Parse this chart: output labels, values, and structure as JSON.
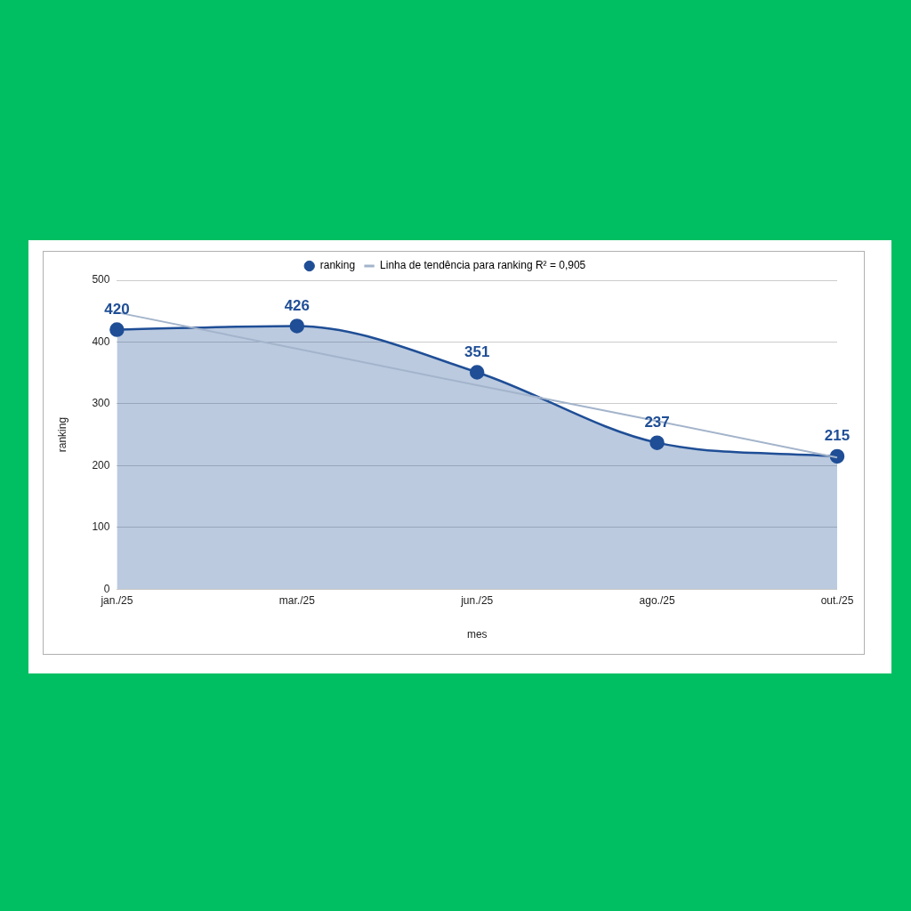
{
  "chart_data": {
    "type": "area",
    "xlabel": "mes",
    "ylabel": "ranking",
    "categories": [
      "jan./25",
      "mar./25",
      "jun./25",
      "ago./25",
      "out./25"
    ],
    "series": [
      {
        "name": "ranking",
        "type": "area",
        "color": "#1f4e96",
        "marker": "circle",
        "values": [
          420,
          426,
          351,
          237,
          215
        ],
        "value_labels": [
          "420",
          "426",
          "351",
          "237",
          "215"
        ]
      },
      {
        "name": "Linha de tendência para ranking R² = 0,905",
        "type": "line",
        "color": "#a3b4cb",
        "marker": "none",
        "values": [
          448,
          389,
          330,
          272,
          213
        ]
      }
    ],
    "ylim": [
      0,
      500
    ],
    "yticks": [
      0,
      100,
      200,
      300,
      400,
      500
    ],
    "grid": "y",
    "legend": "top"
  }
}
